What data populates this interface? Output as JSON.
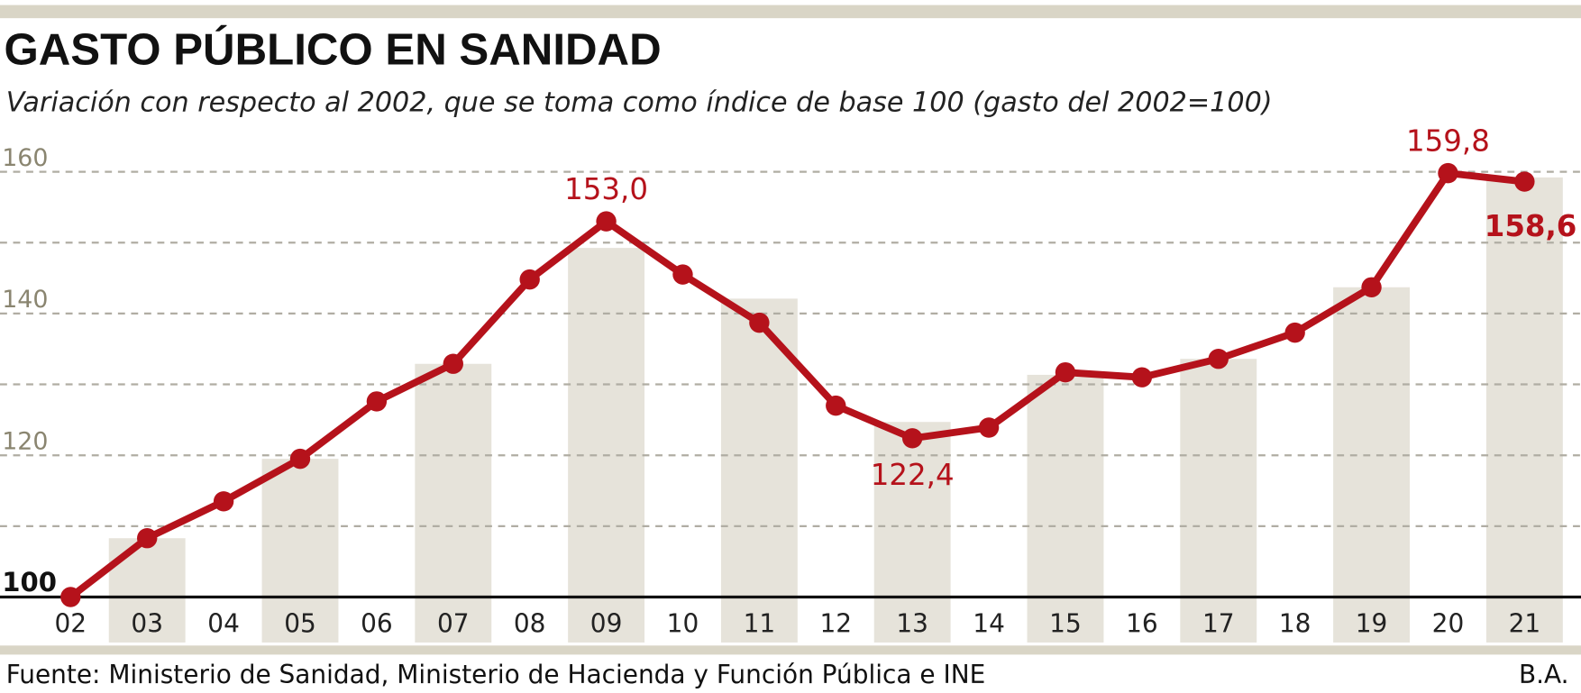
{
  "title": "GASTO PÚBLICO EN SANIDAD",
  "subtitle": "Variación con respecto al 2002, que se toma como índice de base 100 (gasto del 2002=100)",
  "source": "Fuente: Ministerio de Sanidad, Ministerio de Hacienda y Función Pública e INE",
  "credit": "B.A.",
  "colors": {
    "line": "#b5121b",
    "bars": "#e6e3da",
    "band": "#d9d5c6",
    "grid": "#b0ada3",
    "ytick": "#8a8570"
  },
  "chart_data": {
    "type": "line",
    "title": "GASTO PÚBLICO EN SANIDAD",
    "subtitle": "Variación con respecto al 2002, que se toma como índice de base 100 (gasto del 2002=100)",
    "xlabel": "",
    "ylabel": "",
    "categories": [
      "02",
      "03",
      "04",
      "05",
      "06",
      "07",
      "08",
      "09",
      "10",
      "11",
      "12",
      "13",
      "14",
      "15",
      "16",
      "17",
      "18",
      "19",
      "20",
      "21"
    ],
    "values": [
      100,
      108.3,
      113.5,
      119.5,
      127.6,
      132.9,
      144.8,
      153.0,
      145.5,
      138.7,
      127.0,
      122.4,
      123.9,
      131.7,
      131.0,
      133.6,
      137.3,
      143.7,
      159.8,
      158.6
    ],
    "ylim": [
      100,
      160
    ],
    "yticks": [
      {
        "value": 100,
        "label": "100"
      },
      {
        "value": 110,
        "label": ""
      },
      {
        "value": 120,
        "label": "120"
      },
      {
        "value": 130,
        "label": ""
      },
      {
        "value": 140,
        "label": "140"
      },
      {
        "value": 150,
        "label": ""
      },
      {
        "value": 160,
        "label": "160"
      }
    ],
    "grid": true,
    "legend": "none",
    "alternate_shaded_columns": [
      "03",
      "05",
      "07",
      "09",
      "11",
      "13",
      "15",
      "17",
      "19",
      "21"
    ],
    "data_labels": [
      {
        "category": "09",
        "text": "153,0",
        "position": "above"
      },
      {
        "category": "13",
        "text": "122,4",
        "position": "below"
      },
      {
        "category": "20",
        "text": "159,8",
        "position": "above"
      },
      {
        "category": "21",
        "text": "158,6",
        "position": "below",
        "bold": true
      }
    ]
  }
}
